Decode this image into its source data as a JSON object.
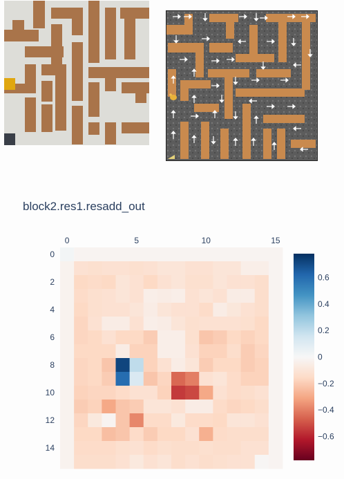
{
  "title": "block2.res1.resadd_out",
  "colors": {
    "wall": "#ddddd8",
    "path": "#a9744a",
    "agent": "#e0a70f",
    "goal": "#3a3f48",
    "floor_dark": "#5a5a5a",
    "sand": "#c9884c",
    "arrow": "#ffffff"
  },
  "icons": {
    "agent": "mouse-icon",
    "goal": "cheese-icon"
  },
  "chart_data": {
    "type": "heatmap",
    "title": "block2.res1.resadd_out",
    "x_ticks": [
      "0",
      "5",
      "10",
      "15"
    ],
    "y_ticks": [
      "0",
      "2",
      "4",
      "6",
      "8",
      "10",
      "12",
      "14"
    ],
    "colorbar_ticks": [
      "0.6",
      "0.4",
      "0.2",
      "0",
      "−0.2",
      "−0.4",
      "−0.6"
    ],
    "zmin": -0.78,
    "zmax": 0.78,
    "colorscale": "RdBu",
    "z": [
      [
        0.02,
        -0.02,
        -0.02,
        -0.02,
        -0.02,
        -0.02,
        -0.02,
        -0.02,
        -0.02,
        -0.02,
        -0.02,
        -0.02,
        -0.02,
        -0.02,
        -0.02,
        -0.02
      ],
      [
        -0.03,
        -0.12,
        -0.13,
        -0.12,
        -0.12,
        -0.13,
        -0.12,
        -0.1,
        -0.1,
        -0.12,
        -0.12,
        -0.1,
        -0.1,
        -0.05,
        -0.05,
        -0.02
      ],
      [
        -0.03,
        -0.16,
        -0.15,
        -0.16,
        -0.1,
        -0.12,
        -0.16,
        -0.12,
        -0.1,
        -0.13,
        -0.13,
        -0.1,
        -0.12,
        -0.12,
        -0.14,
        -0.02
      ],
      [
        -0.03,
        -0.15,
        -0.13,
        -0.12,
        -0.1,
        -0.12,
        -0.05,
        -0.06,
        -0.05,
        -0.12,
        -0.1,
        -0.12,
        -0.06,
        -0.06,
        -0.14,
        -0.02
      ],
      [
        -0.03,
        -0.16,
        -0.13,
        -0.12,
        -0.12,
        -0.1,
        -0.06,
        -0.1,
        -0.12,
        -0.12,
        -0.15,
        -0.06,
        -0.09,
        -0.12,
        -0.14,
        -0.02
      ],
      [
        -0.03,
        -0.17,
        -0.12,
        -0.06,
        -0.06,
        -0.12,
        -0.05,
        -0.06,
        -0.1,
        -0.13,
        -0.12,
        -0.12,
        -0.12,
        -0.13,
        -0.16,
        -0.02
      ],
      [
        -0.03,
        -0.17,
        -0.16,
        -0.12,
        -0.16,
        -0.16,
        -0.2,
        -0.05,
        -0.05,
        -0.13,
        -0.22,
        -0.2,
        -0.16,
        -0.18,
        -0.16,
        -0.02
      ],
      [
        -0.03,
        -0.16,
        -0.16,
        -0.16,
        -0.06,
        -0.18,
        -0.18,
        -0.05,
        -0.05,
        -0.12,
        -0.18,
        -0.18,
        -0.14,
        -0.2,
        -0.17,
        -0.02
      ],
      [
        -0.03,
        -0.17,
        -0.16,
        -0.22,
        0.72,
        0.2,
        -0.18,
        -0.12,
        -0.06,
        -0.1,
        -0.2,
        -0.16,
        -0.16,
        -0.2,
        -0.18,
        -0.02
      ],
      [
        -0.03,
        -0.17,
        -0.16,
        -0.2,
        0.6,
        0.12,
        -0.22,
        -0.17,
        -0.45,
        -0.4,
        -0.12,
        -0.1,
        -0.15,
        -0.18,
        -0.18,
        -0.02
      ],
      [
        -0.03,
        -0.18,
        -0.17,
        -0.17,
        -0.15,
        -0.12,
        -0.12,
        -0.18,
        -0.55,
        -0.52,
        -0.3,
        -0.12,
        -0.15,
        -0.14,
        -0.12,
        -0.02
      ],
      [
        -0.03,
        -0.2,
        -0.18,
        -0.3,
        -0.22,
        -0.2,
        -0.1,
        -0.1,
        -0.12,
        -0.06,
        -0.06,
        -0.15,
        -0.17,
        -0.16,
        -0.14,
        -0.02
      ],
      [
        -0.03,
        -0.17,
        -0.08,
        -0.02,
        -0.22,
        -0.38,
        -0.15,
        -0.15,
        -0.08,
        -0.15,
        -0.15,
        -0.16,
        -0.1,
        -0.1,
        -0.12,
        -0.02
      ],
      [
        -0.03,
        -0.16,
        -0.16,
        -0.24,
        -0.22,
        -0.15,
        -0.2,
        -0.16,
        -0.16,
        -0.12,
        -0.28,
        -0.15,
        -0.14,
        -0.14,
        -0.14,
        -0.02
      ],
      [
        -0.03,
        -0.15,
        -0.15,
        -0.15,
        -0.13,
        -0.12,
        -0.15,
        -0.13,
        -0.14,
        -0.14,
        -0.13,
        -0.14,
        -0.14,
        -0.12,
        -0.12,
        -0.02
      ],
      [
        -0.03,
        -0.14,
        -0.14,
        -0.14,
        -0.12,
        -0.08,
        -0.12,
        -0.1,
        -0.14,
        -0.12,
        -0.14,
        -0.13,
        -0.12,
        -0.12,
        -0.01,
        -0.02
      ]
    ]
  }
}
